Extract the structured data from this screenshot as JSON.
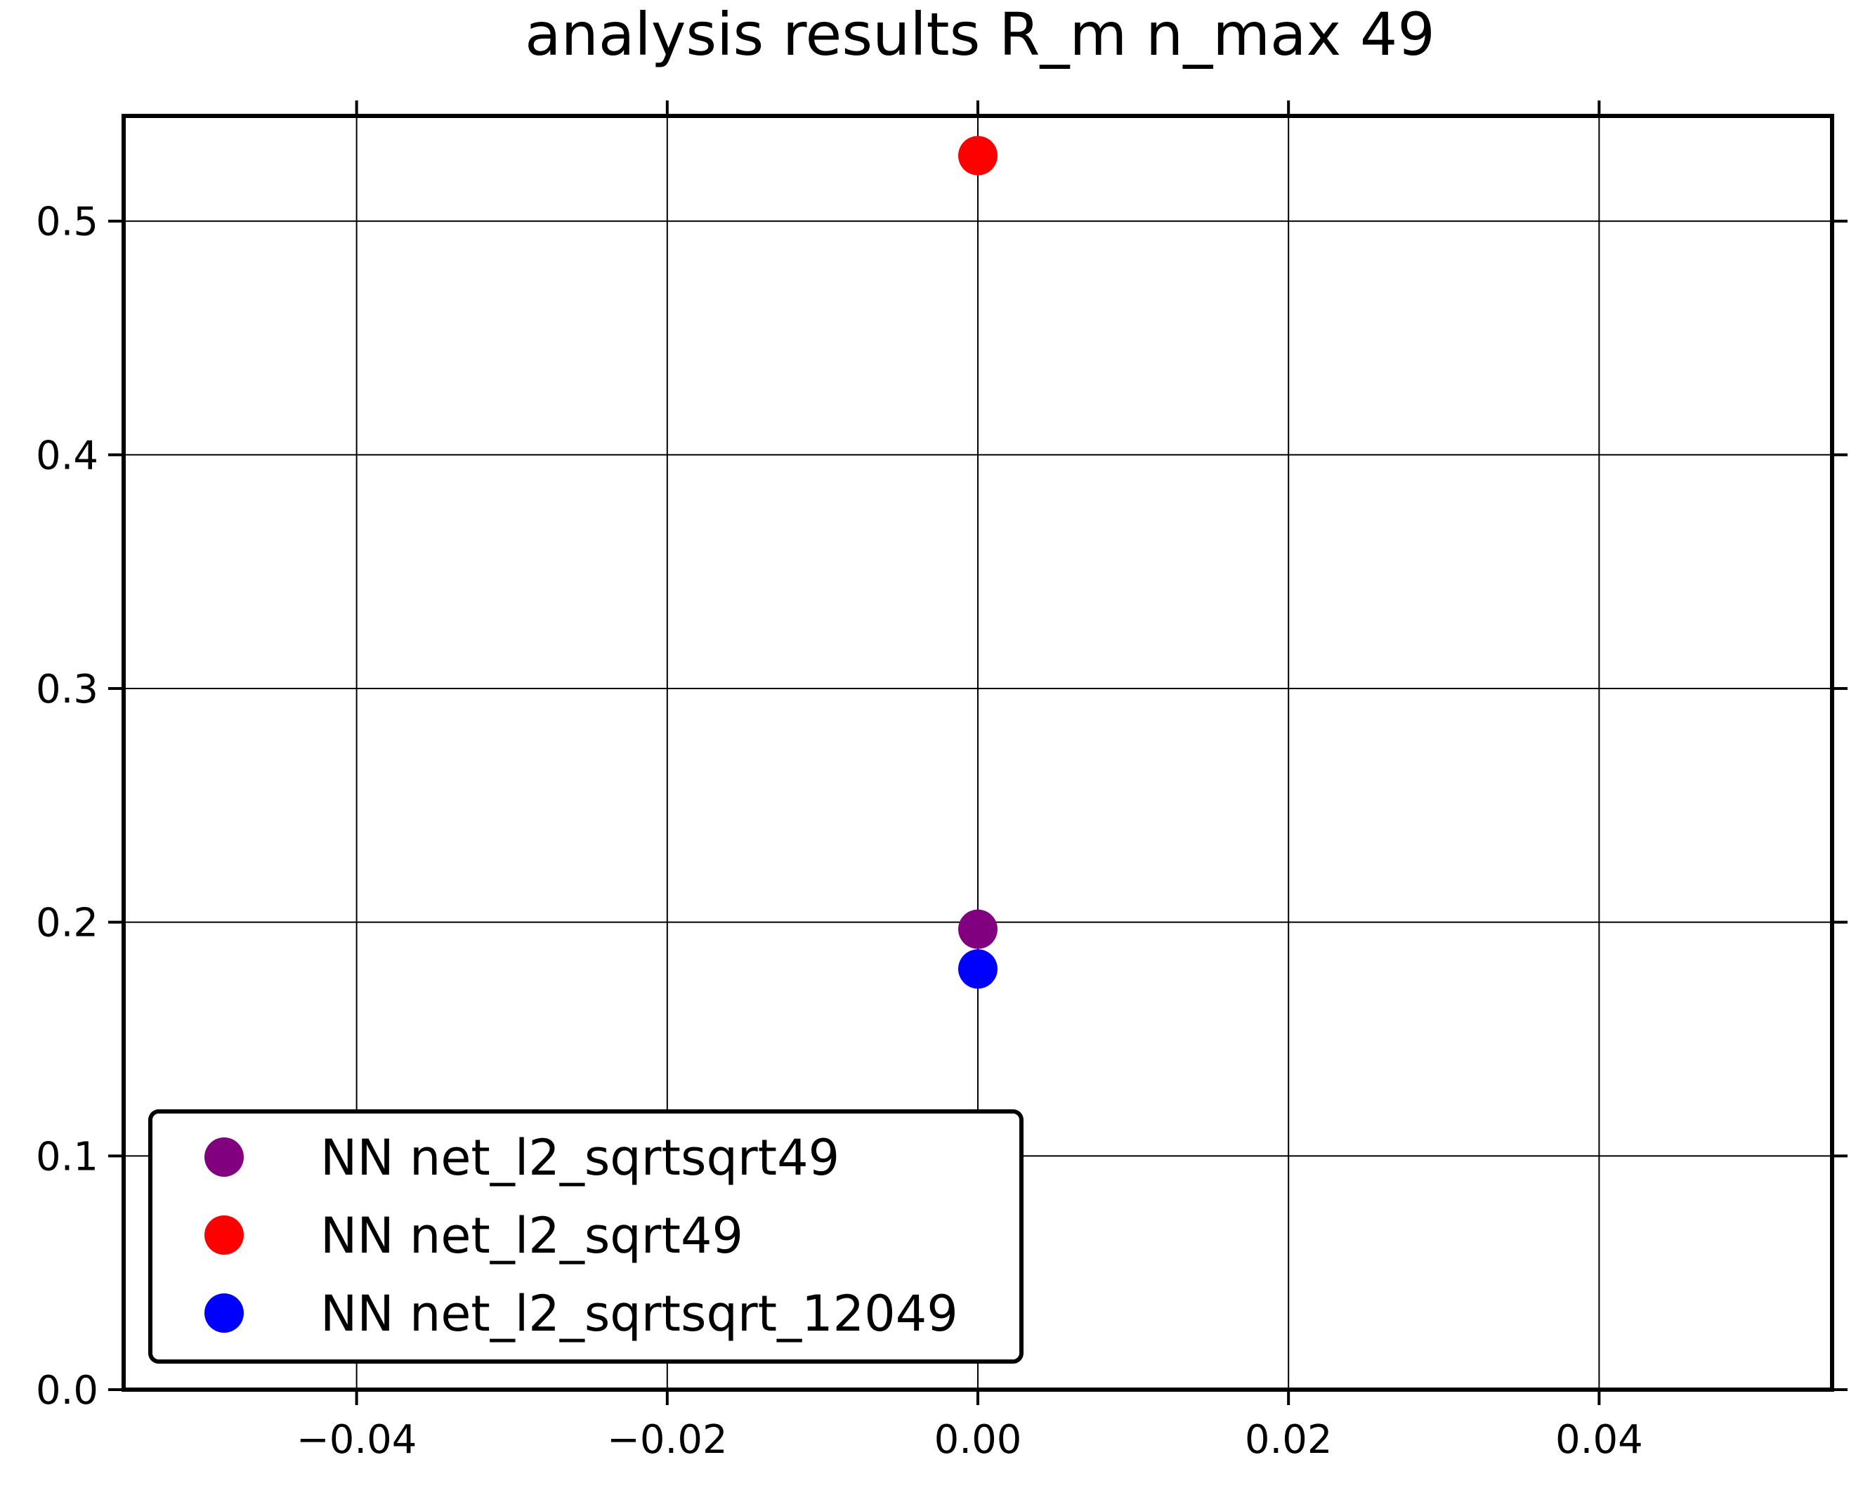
{
  "chart_data": {
    "type": "scatter",
    "title": "analysis results R_m  n_max 49",
    "xlabel": "",
    "ylabel": "",
    "xlim": [
      -0.055,
      0.055
    ],
    "ylim": [
      0.0,
      0.545
    ],
    "xticks": [
      {
        "value": -0.04,
        "label": "−0.04"
      },
      {
        "value": -0.02,
        "label": "−0.02"
      },
      {
        "value": 0.0,
        "label": "0.00"
      },
      {
        "value": 0.02,
        "label": "0.02"
      },
      {
        "value": 0.04,
        "label": "0.04"
      }
    ],
    "yticks": [
      {
        "value": 0.0,
        "label": "0.0"
      },
      {
        "value": 0.1,
        "label": "0.1"
      },
      {
        "value": 0.2,
        "label": "0.2"
      },
      {
        "value": 0.3,
        "label": "0.3"
      },
      {
        "value": 0.4,
        "label": "0.4"
      },
      {
        "value": 0.5,
        "label": "0.5"
      }
    ],
    "grid": true,
    "legend_position": "lower-left",
    "series": [
      {
        "name": "NN net_l2_sqrtsqrt49",
        "color": "#800080",
        "x": [
          0.0
        ],
        "y": [
          0.197
        ]
      },
      {
        "name": "NN net_l2_sqrt49",
        "color": "#ff0000",
        "x": [
          0.0
        ],
        "y": [
          0.528
        ]
      },
      {
        "name": "NN net_l2_sqrtsqrt_12049",
        "color": "#0000ff",
        "x": [
          0.0
        ],
        "y": [
          0.18
        ]
      }
    ]
  }
}
